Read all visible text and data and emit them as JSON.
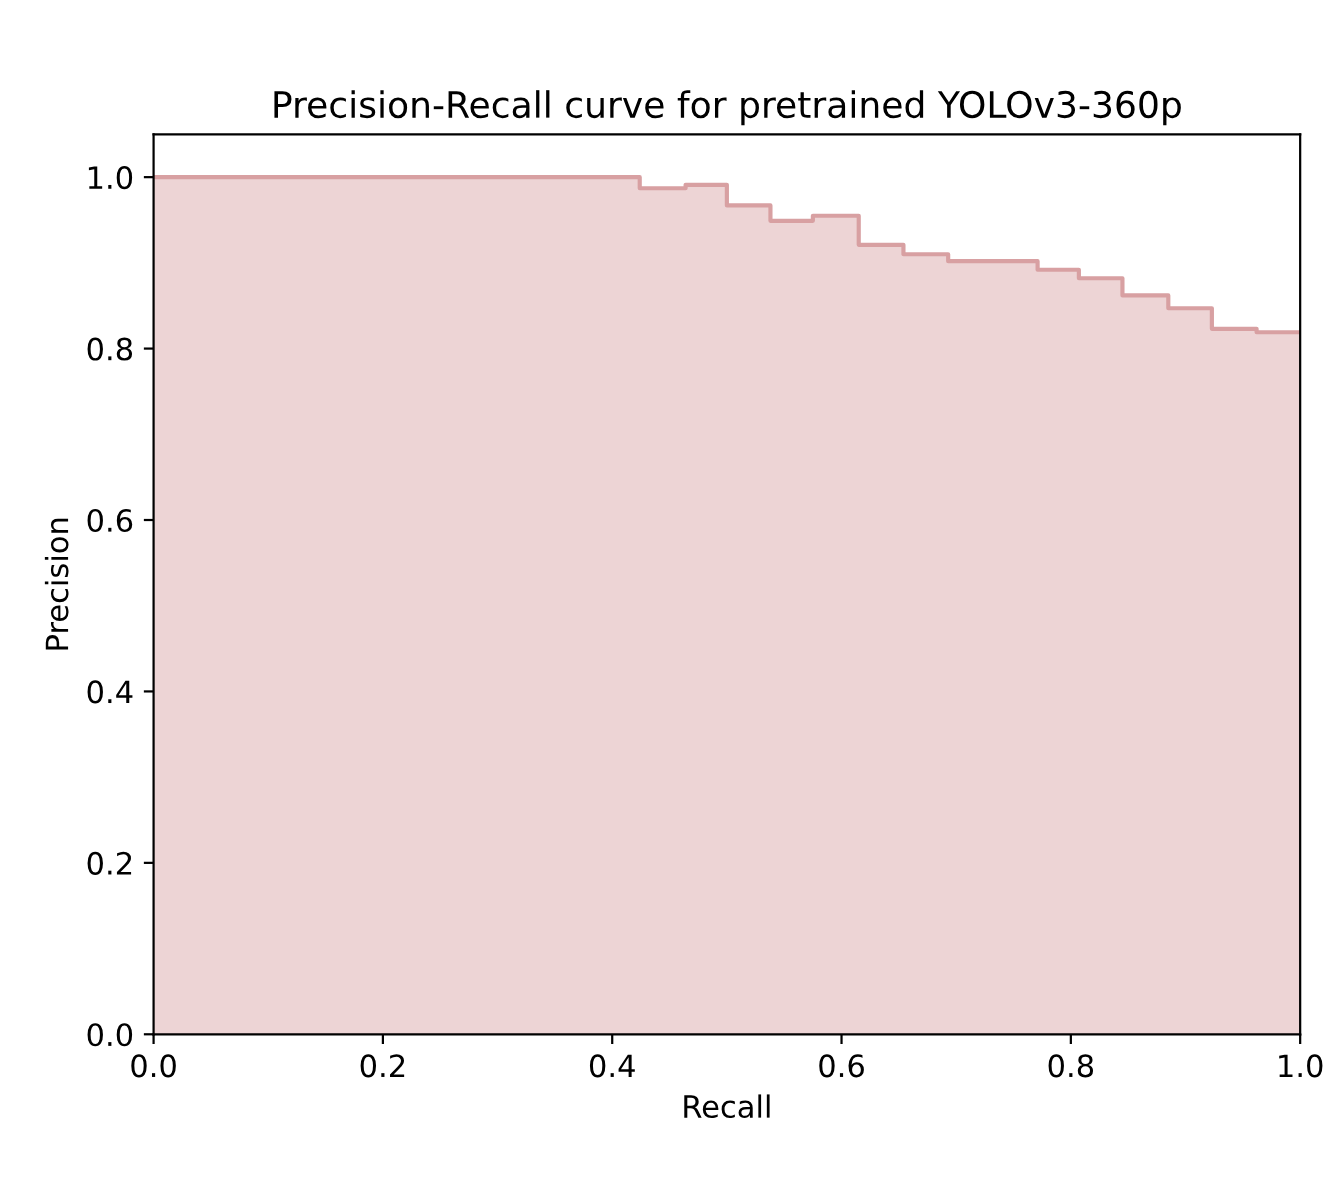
{
  "chart_data": {
    "type": "step",
    "title": "Precision-Recall curve for pretrained YOLOv3-360p",
    "xlabel": "Recall",
    "ylabel": "Precision",
    "series": [
      {
        "color": "#d8a0a2",
        "x": [
          0,
          0.424,
          0.464,
          0.5,
          0.538,
          0.575,
          0.615,
          0.654,
          0.693,
          0.771,
          0.807,
          0.845,
          0.885,
          0.923,
          0.962,
          1.0
        ],
        "values": [
          1.0,
          0.987,
          0.991,
          0.967,
          0.949,
          0.955,
          0.921,
          0.91,
          0.902,
          0.892,
          0.882,
          0.862,
          0.847,
          0.823,
          0.819,
          0.819
        ]
      }
    ],
    "xlim": [
      0,
      1
    ],
    "ylim": [
      0,
      1.05
    ],
    "xticks": [
      {
        "value": 0,
        "label": "0.0"
      },
      0.2,
      0.4,
      0.6,
      0.8,
      {
        "value": 1,
        "label": "1.0"
      }
    ],
    "yticks": [
      {
        "value": 0,
        "label": "0.0"
      },
      0.2,
      0.4,
      0.6,
      0.8,
      {
        "value": 1,
        "label": "1.0"
      }
    ],
    "grid": false,
    "legend": false
  }
}
